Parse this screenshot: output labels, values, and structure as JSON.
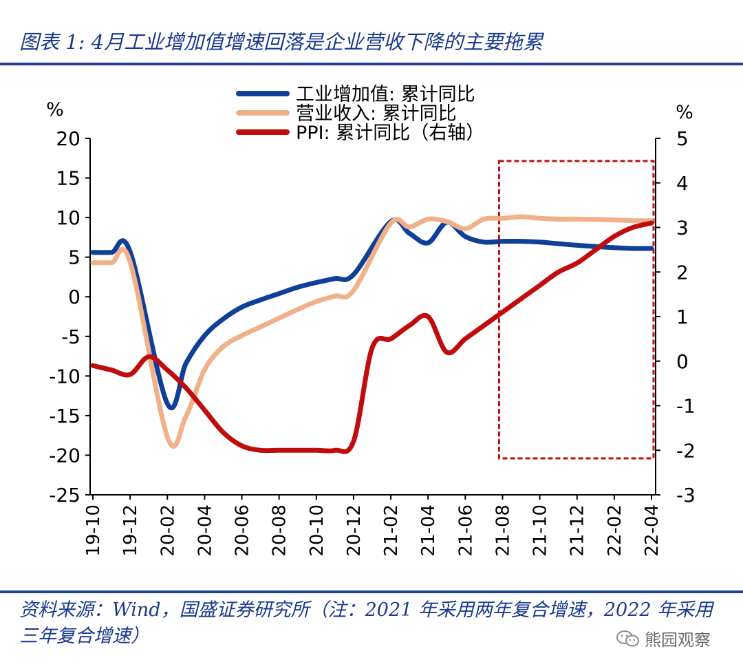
{
  "title": "图表 1: 4月工业增加值增速回落是企业营收下降的主要拖累",
  "source": "资料来源：Wind，国盛证券研究所（注：2021 年采用两年复合增速，2022 年采用三年复合增速）",
  "watermark": "熊园观察",
  "chart_data": {
    "type": "line",
    "title": "4月工业增加值增速回落是企业营收下降的主要拖累",
    "ylabel_left": "%",
    "ylabel_right": "%",
    "ylim_left": [
      -25,
      20
    ],
    "ylim_right": [
      -3,
      5
    ],
    "yticks_left": [
      20,
      15,
      10,
      5,
      0,
      -5,
      -10,
      -15,
      -20,
      -25
    ],
    "yticks_right": [
      5,
      4,
      3,
      2,
      1,
      0,
      -1,
      -2,
      -3
    ],
    "categories": [
      "19-10",
      "19-11",
      "19-12",
      "20-01",
      "20-02",
      "20-03",
      "20-04",
      "20-05",
      "20-06",
      "20-07",
      "20-08",
      "20-09",
      "20-10",
      "20-11",
      "20-12",
      "21-01",
      "21-02",
      "21-03",
      "21-04",
      "21-05",
      "21-06",
      "21-07",
      "21-08",
      "21-09",
      "21-10",
      "21-11",
      "21-12",
      "22-01",
      "22-02",
      "22-03",
      "22-04"
    ],
    "xtick_labels": [
      "19-10",
      "19-12",
      "20-02",
      "20-04",
      "20-06",
      "20-08",
      "20-10",
      "20-12",
      "21-02",
      "21-04",
      "21-06",
      "21-08",
      "21-10",
      "21-12",
      "22-02",
      "22-04"
    ],
    "legend_position": "top-center",
    "series": [
      {
        "name": "工业增加值: 累计同比",
        "axis": "left",
        "color": "#0f3f96",
        "values": [
          5.6,
          5.6,
          5.7,
          null,
          -13.5,
          -8.4,
          -4.9,
          -2.8,
          -1.3,
          -0.4,
          0.4,
          1.2,
          1.8,
          2.3,
          2.8,
          null,
          9.5,
          8.0,
          6.8,
          9.4,
          7.6,
          6.9,
          7.0,
          7.0,
          6.9,
          6.7,
          6.5,
          null,
          6.2,
          6.1,
          6.1
        ]
      },
      {
        "name": "营业收入: 累计同比",
        "axis": "left",
        "color": "#f0b089",
        "values": [
          4.3,
          4.3,
          4.4,
          null,
          -17.7,
          -15.1,
          -9.2,
          -6.3,
          -4.9,
          -3.8,
          -2.7,
          -1.6,
          -0.6,
          0.1,
          0.8,
          null,
          9.3,
          8.8,
          9.8,
          9.5,
          8.6,
          9.8,
          9.9,
          10.1,
          9.9,
          9.8,
          9.8,
          null,
          9.7,
          9.6,
          9.6
        ]
      },
      {
        "name": "PPI: 累计同比（右轴）",
        "axis": "right",
        "color": "#c00c0c",
        "values": [
          -0.1,
          -0.2,
          -0.3,
          0.1,
          -0.2,
          -0.6,
          -1.1,
          -1.6,
          -1.9,
          -2.0,
          -2.0,
          -2.0,
          -2.0,
          -2.0,
          -1.8,
          0.3,
          0.5,
          0.8,
          1.0,
          0.2,
          0.5,
          0.8,
          1.1,
          1.4,
          1.7,
          2.0,
          2.2,
          2.5,
          2.8,
          3.0,
          3.1
        ]
      }
    ],
    "annotation": {
      "type": "dashed-box",
      "color": "#c00c0c",
      "from": "21-08",
      "to": "22-04"
    }
  }
}
